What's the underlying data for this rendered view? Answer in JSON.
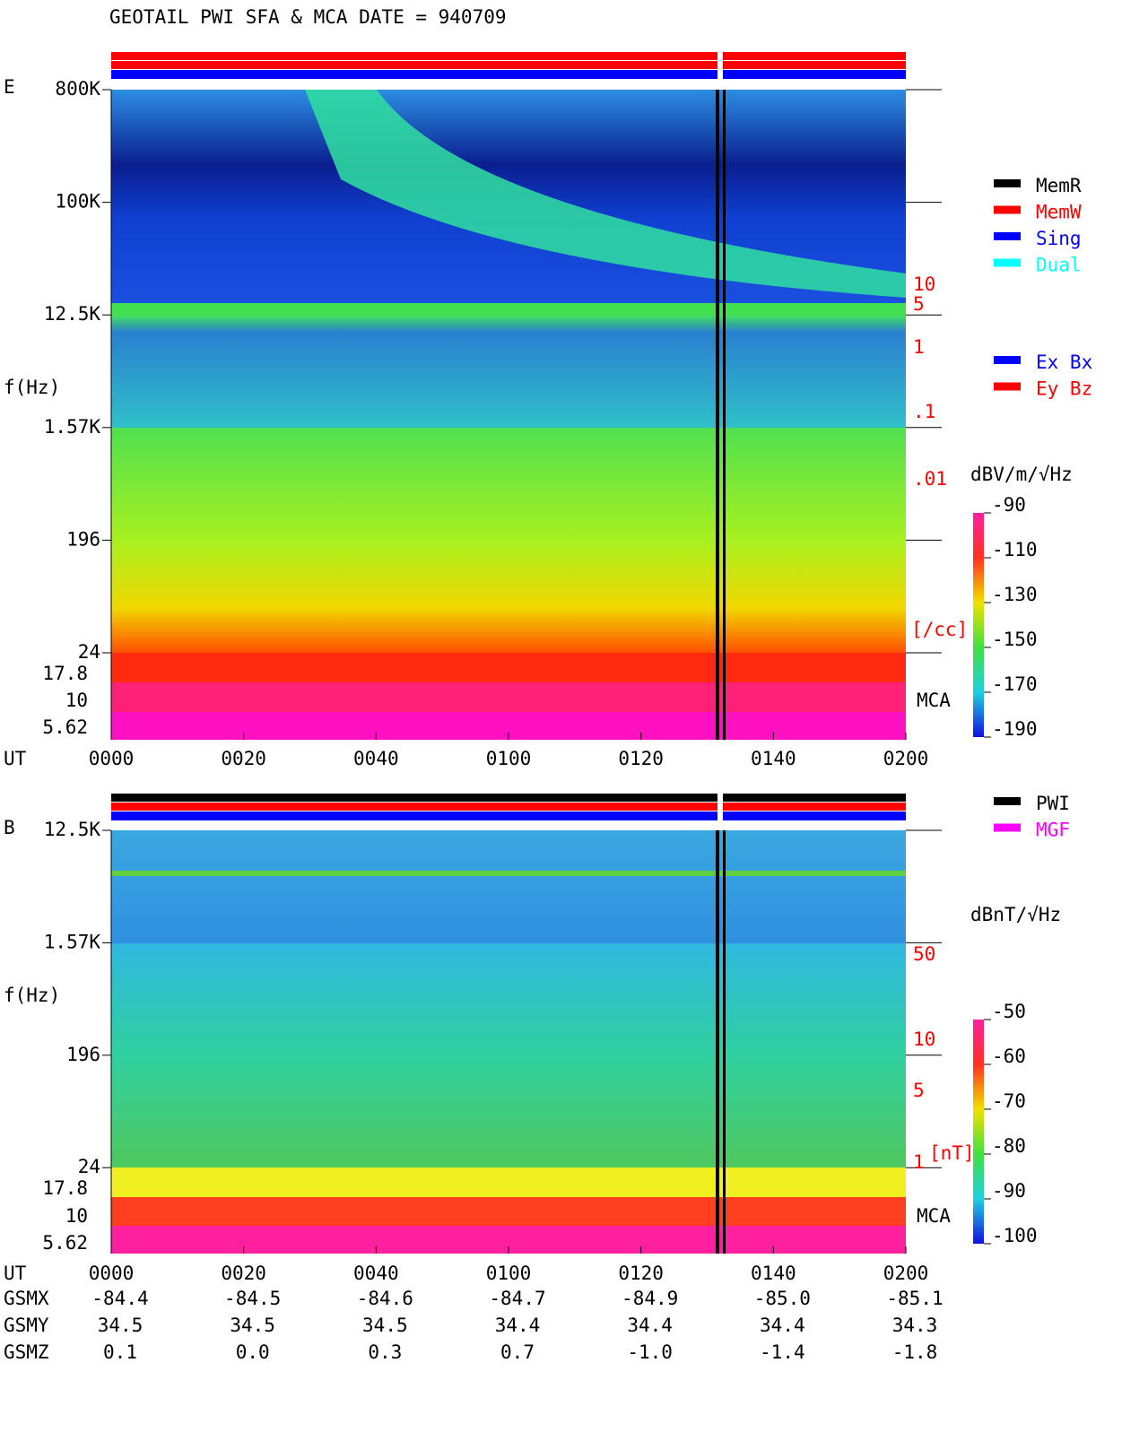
{
  "title": "GEOTAIL   PWI SFA & MCA   DATE = 940709",
  "panels": [
    {
      "label": "E",
      "y_axis_label": "f(Hz)",
      "freq_ticks": [
        "800K",
        "100K",
        "12.5K",
        "1.57K",
        "196",
        "24"
      ],
      "mca_ticks": [
        "17.8",
        "10",
        "5.62"
      ],
      "x_label": "UT",
      "x_ticks": [
        "0000",
        "0020",
        "0040",
        "0100",
        "0120",
        "0140",
        "0200"
      ],
      "density_ticks": [
        "10",
        "5",
        "1",
        ".1",
        ".01"
      ],
      "density_unit": "[/cc]",
      "mca_label": "MCA",
      "colorbar_title": "dBV/m/√Hz",
      "colorbar_ticks": [
        "-90",
        "-110",
        "-130",
        "-150",
        "-170",
        "-190"
      ],
      "legend": [
        {
          "name": "MemR",
          "color": "#000000"
        },
        {
          "name": "MemW",
          "color": "#ff0000"
        },
        {
          "name": "Sing",
          "color": "#0000ff"
        },
        {
          "name": "Dual",
          "color": "#00ffff"
        }
      ],
      "legend2": [
        {
          "name": "Ex Bx",
          "color": "#0000ff"
        },
        {
          "name": "Ey Bz",
          "color": "#ff0000"
        }
      ]
    },
    {
      "label": "B",
      "y_axis_label": "f(Hz)",
      "freq_ticks": [
        "12.5K",
        "1.57K",
        "196",
        "24"
      ],
      "mca_ticks": [
        "17.8",
        "10",
        "5.62"
      ],
      "x_label": "UT",
      "x_ticks": [
        "0000",
        "0020",
        "0040",
        "0100",
        "0120",
        "0140",
        "0200"
      ],
      "density_ticks": [
        "50",
        "10",
        "5",
        "1"
      ],
      "density_unit": "[nT]",
      "mca_label": "MCA",
      "colorbar_title": "dBnT/√Hz",
      "colorbar_ticks": [
        "-50",
        "-60",
        "-70",
        "-80",
        "-90",
        "-100"
      ],
      "legend": [
        {
          "name": "PWI",
          "color": "#000000"
        },
        {
          "name": "MGF",
          "color": "#ff00ff"
        }
      ]
    }
  ],
  "orbit": {
    "rows": [
      {
        "label": "GSMX",
        "values": [
          "-84.4",
          "-84.5",
          "-84.6",
          "-84.7",
          "-84.9",
          "-85.0",
          "-85.1"
        ]
      },
      {
        "label": "GSMY",
        "values": [
          "34.5",
          "34.5",
          "34.5",
          "34.4",
          "34.4",
          "34.4",
          "34.3"
        ]
      },
      {
        "label": "GSMZ",
        "values": [
          "0.1",
          "0.0",
          "0.3",
          "0.7",
          "-1.0",
          "-1.4",
          "-1.8"
        ]
      }
    ]
  }
}
